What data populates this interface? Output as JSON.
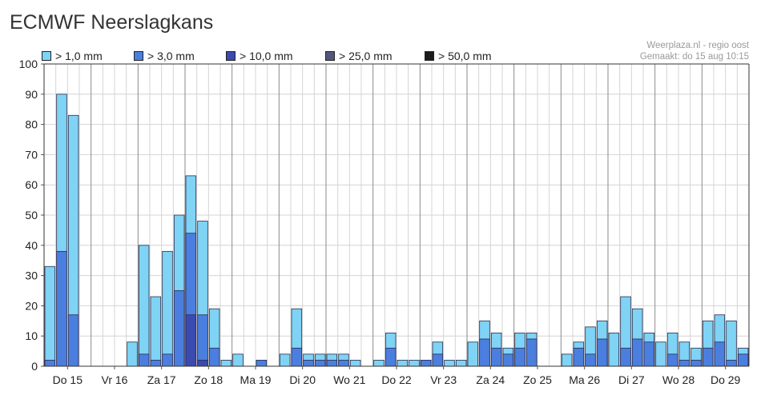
{
  "header": {
    "title": "ECMWF Neerslagkans",
    "source": "Weerplaza.nl - regio oost",
    "generated": "Gemaakt: do 15 aug 10:15"
  },
  "legend": [
    {
      "label": "> 1,0 mm",
      "color": "#7fd3f5"
    },
    {
      "label": "> 3,0 mm",
      "color": "#4a7fe0"
    },
    {
      "label": "> 10,0 mm",
      "color": "#3a4ab0"
    },
    {
      "label": "> 25,0 mm",
      "color": "#54567a"
    },
    {
      "label": "> 50,0 mm",
      "color": "#1c1c1c"
    }
  ],
  "chart_data": {
    "type": "bar",
    "title": "ECMWF Neerslagkans",
    "ylim": [
      0,
      100
    ],
    "yticks": [
      0,
      10,
      20,
      30,
      40,
      50,
      60,
      70,
      80,
      90,
      100
    ],
    "grid": true,
    "legend_position": "top-left",
    "stacked_overlay": true,
    "days": [
      "Do 15",
      "Vr 16",
      "Za 17",
      "Zo 18",
      "Ma 19",
      "Di 20",
      "Wo 21",
      "Do 22",
      "Vr 23",
      "Za 24",
      "Zo 25",
      "Ma 26",
      "Di 27",
      "Wo 28",
      "Do 29"
    ],
    "bars_per_day": 4,
    "series": [
      {
        "name": "> 1,0 mm",
        "color": "#7fd3f5",
        "values": [
          33,
          90,
          83,
          0,
          0,
          0,
          0,
          8,
          40,
          23,
          38,
          50,
          63,
          48,
          19,
          2,
          4,
          0,
          2,
          0,
          4,
          19,
          4,
          4,
          4,
          4,
          2,
          0,
          2,
          11,
          2,
          2,
          2,
          8,
          2,
          2,
          8,
          15,
          11,
          6,
          11,
          11,
          0,
          0,
          4,
          8,
          13,
          15,
          11,
          23,
          19,
          11,
          8,
          11,
          8,
          6,
          15,
          17,
          15,
          6
        ]
      },
      {
        "name": "> 3,0 mm",
        "color": "#4a7fe0",
        "values": [
          2,
          38,
          17,
          0,
          0,
          0,
          0,
          0,
          4,
          2,
          4,
          25,
          44,
          17,
          6,
          0,
          0,
          0,
          2,
          0,
          0,
          6,
          2,
          2,
          2,
          2,
          0,
          0,
          0,
          6,
          0,
          0,
          2,
          4,
          0,
          0,
          0,
          9,
          6,
          4,
          6,
          9,
          0,
          0,
          0,
          6,
          4,
          9,
          0,
          6,
          9,
          8,
          0,
          4,
          2,
          2,
          6,
          8,
          2,
          4
        ]
      },
      {
        "name": "> 10,0 mm",
        "color": "#3a4ab0",
        "values": [
          0,
          0,
          0,
          0,
          0,
          0,
          0,
          0,
          0,
          0,
          0,
          0,
          17,
          2,
          0,
          0,
          0,
          0,
          0,
          0,
          0,
          0,
          0,
          0,
          0,
          0,
          0,
          0,
          0,
          0,
          0,
          0,
          0,
          0,
          0,
          0,
          0,
          0,
          0,
          0,
          0,
          0,
          0,
          0,
          0,
          0,
          0,
          0,
          0,
          0,
          0,
          0,
          0,
          0,
          0,
          0,
          0,
          0,
          0,
          0
        ]
      },
      {
        "name": "> 25,0 mm",
        "color": "#54567a",
        "values": [
          0,
          0,
          0,
          0,
          0,
          0,
          0,
          0,
          0,
          0,
          0,
          0,
          0,
          0,
          0,
          0,
          0,
          0,
          0,
          0,
          0,
          0,
          0,
          0,
          0,
          0,
          0,
          0,
          0,
          0,
          0,
          0,
          0,
          0,
          0,
          0,
          0,
          0,
          0,
          0,
          0,
          0,
          0,
          0,
          0,
          0,
          0,
          0,
          0,
          0,
          0,
          0,
          0,
          0,
          0,
          0,
          0,
          0,
          0,
          0
        ]
      },
      {
        "name": "> 50,0 mm",
        "color": "#1c1c1c",
        "values": [
          0,
          0,
          0,
          0,
          0,
          0,
          0,
          0,
          0,
          0,
          0,
          0,
          0,
          0,
          0,
          0,
          0,
          0,
          0,
          0,
          0,
          0,
          0,
          0,
          0,
          0,
          0,
          0,
          0,
          0,
          0,
          0,
          0,
          0,
          0,
          0,
          0,
          0,
          0,
          0,
          0,
          0,
          0,
          0,
          0,
          0,
          0,
          0,
          0,
          0,
          0,
          0,
          0,
          0,
          0,
          0,
          0,
          0,
          0,
          0
        ]
      }
    ]
  }
}
